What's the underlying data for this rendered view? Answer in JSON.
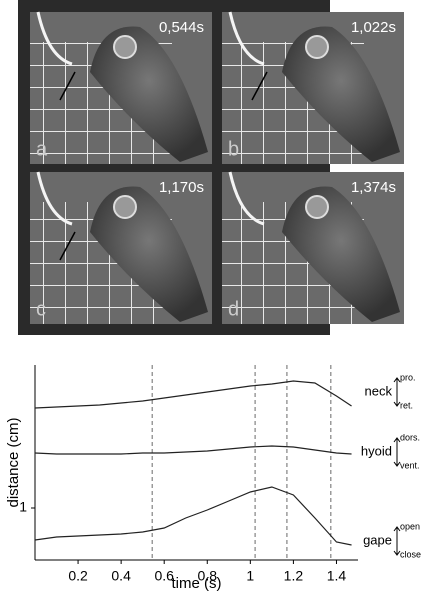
{
  "panels": [
    {
      "letter": "a",
      "time": "0,544s"
    },
    {
      "letter": "b",
      "time": "1,022s"
    },
    {
      "letter": "c",
      "time": "1,170s"
    },
    {
      "letter": "d",
      "time": "1,374s"
    }
  ],
  "chart_data": {
    "type": "line",
    "x_label": "time (s)",
    "y_label": "distance (cm)",
    "xlim": [
      0,
      1.5
    ],
    "xticks": [
      0.2,
      0.4,
      0.6,
      0.8,
      1.0,
      1.2,
      1.4
    ],
    "ylim": [
      0.48,
      2.43
    ],
    "yticks": [
      1
    ],
    "vlines": [
      0.544,
      1.022,
      1.17,
      1.374
    ],
    "x": [
      0,
      0.1,
      0.2,
      0.3,
      0.4,
      0.5,
      0.6,
      0.7,
      0.8,
      0.9,
      1.0,
      1.1,
      1.2,
      1.3,
      1.4,
      1.47
    ],
    "series": [
      {
        "name": "neck",
        "color": "#222222",
        "range_labels": [
          "pro.",
          "ret."
        ],
        "values": [
          2.0,
          2.01,
          2.02,
          2.03,
          2.05,
          2.07,
          2.1,
          2.13,
          2.16,
          2.19,
          2.22,
          2.24,
          2.27,
          2.25,
          2.12,
          2.02
        ]
      },
      {
        "name": "hyoid",
        "color": "#222222",
        "range_labels": [
          "dors.",
          "vent."
        ],
        "values": [
          1.55,
          1.54,
          1.54,
          1.54,
          1.54,
          1.55,
          1.55,
          1.56,
          1.57,
          1.59,
          1.61,
          1.62,
          1.61,
          1.58,
          1.55,
          1.54
        ]
      },
      {
        "name": "gape",
        "color": "#222222",
        "range_labels": [
          "open",
          "close"
        ],
        "values": [
          0.68,
          0.71,
          0.72,
          0.73,
          0.74,
          0.76,
          0.8,
          0.9,
          0.98,
          1.07,
          1.16,
          1.21,
          1.13,
          0.9,
          0.66,
          0.63
        ]
      }
    ]
  }
}
